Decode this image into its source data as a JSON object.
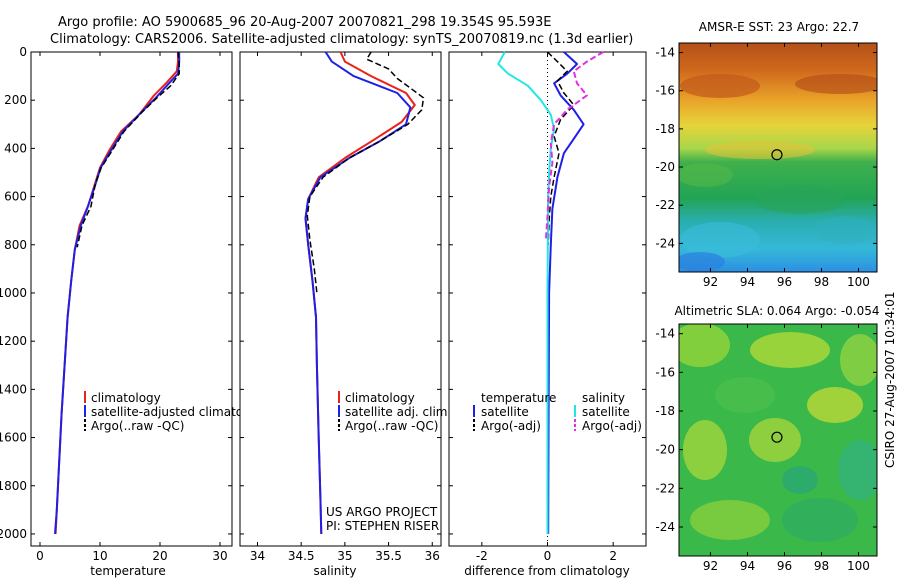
{
  "header": {
    "line1": "Argo profile: AO 5900685_96 20-Aug-2007 20070821_298 19.354S 95.593E",
    "line2": "Climatology: CARS2006. Satellite-adjusted climatology: synTS_20070819.nc (1.3d earlier)"
  },
  "side_label": "CSIRO 27-Aug-2007 10:34:01",
  "credit": {
    "line1": "US ARGO PROJECT",
    "line2": "PI: STEPHEN RISER"
  },
  "colors": {
    "climatology": "#e8231a",
    "satellite": "#1f1fe6",
    "argo": "#000000",
    "sal_satellite": "#22e6e6",
    "sal_argo": "#e030e0"
  },
  "chart_data": [
    {
      "id": "temperature",
      "type": "line",
      "xlabel": "temperature",
      "ylabel": "",
      "xlim": [
        -1.5,
        32
      ],
      "ylim": [
        2050,
        0
      ],
      "xticks": [
        0,
        10,
        20,
        30
      ],
      "yticks": [
        0,
        200,
        400,
        600,
        800,
        1000,
        1200,
        1400,
        1600,
        1800,
        2000
      ],
      "legend": [
        "climatology",
        "satellite-adjusted climatology",
        "Argo(..raw -QC)"
      ],
      "series": [
        {
          "name": "climatology",
          "color": "#e8231a",
          "width": 2,
          "points": [
            [
              23,
              0
            ],
            [
              23,
              40
            ],
            [
              22.8,
              80
            ],
            [
              21,
              130
            ],
            [
              19,
              180
            ],
            [
              16.5,
              260
            ],
            [
              13.5,
              330
            ],
            [
              11.5,
              410
            ],
            [
              10,
              480
            ],
            [
              9,
              560
            ],
            [
              8,
              640
            ],
            [
              6.6,
              720
            ],
            [
              5.8,
              820
            ],
            [
              5.2,
              950
            ],
            [
              4.6,
              1100
            ],
            [
              4.1,
              1300
            ],
            [
              3.6,
              1500
            ],
            [
              3.2,
              1700
            ],
            [
              2.8,
              1900
            ],
            [
              2.6,
              2000
            ]
          ]
        },
        {
          "name": "satellite",
          "color": "#1f1fe6",
          "width": 2,
          "points": [
            [
              23.2,
              0
            ],
            [
              23.2,
              40
            ],
            [
              23,
              90
            ],
            [
              21.5,
              130
            ],
            [
              19.3,
              190
            ],
            [
              16.5,
              260
            ],
            [
              13.8,
              330
            ],
            [
              11.8,
              410
            ],
            [
              10.1,
              480
            ],
            [
              9.1,
              560
            ],
            [
              8,
              640
            ],
            [
              6.8,
              720
            ],
            [
              5.8,
              820
            ],
            [
              5.2,
              950
            ],
            [
              4.6,
              1100
            ],
            [
              4.1,
              1300
            ],
            [
              3.6,
              1500
            ],
            [
              3.2,
              1700
            ],
            [
              2.8,
              1900
            ],
            [
              2.5,
              2000
            ]
          ]
        },
        {
          "name": "Argo",
          "color": "#000000",
          "width": 1.5,
          "dashed": true,
          "points": [
            [
              23,
              0
            ],
            [
              23.2,
              50
            ],
            [
              23.2,
              90
            ],
            [
              21.8,
              140
            ],
            [
              19.5,
              190
            ],
            [
              17,
              250
            ],
            [
              14,
              330
            ],
            [
              12,
              410
            ],
            [
              10.2,
              480
            ],
            [
              9.2,
              550
            ],
            [
              8.5,
              640
            ],
            [
              7,
              720
            ],
            [
              6.2,
              810
            ]
          ]
        }
      ]
    },
    {
      "id": "salinity",
      "type": "line",
      "xlabel": "salinity",
      "ylabel": "",
      "xlim": [
        33.8,
        36.1
      ],
      "ylim": [
        2050,
        0
      ],
      "xticks": [
        34,
        34.5,
        35,
        35.5,
        36
      ],
      "yticks": [
        0,
        200,
        400,
        600,
        800,
        1000,
        1200,
        1400,
        1600,
        1800,
        2000
      ],
      "legend": [
        "climatology",
        "satellite adj. clim.",
        "Argo(..raw -QC)"
      ],
      "series": [
        {
          "name": "climatology",
          "color": "#e8231a",
          "width": 2,
          "points": [
            [
              34.95,
              0
            ],
            [
              35,
              40
            ],
            [
              35.3,
              100
            ],
            [
              35.7,
              170
            ],
            [
              35.8,
              220
            ],
            [
              35.65,
              290
            ],
            [
              35.35,
              360
            ],
            [
              35,
              440
            ],
            [
              34.7,
              520
            ],
            [
              34.58,
              610
            ],
            [
              34.55,
              690
            ],
            [
              34.58,
              800
            ],
            [
              34.63,
              950
            ],
            [
              34.67,
              1100
            ],
            [
              34.68,
              1300
            ],
            [
              34.7,
              1600
            ],
            [
              34.72,
              1850
            ],
            [
              34.73,
              2000
            ]
          ]
        },
        {
          "name": "satellite",
          "color": "#1f1fe6",
          "width": 2,
          "points": [
            [
              34.78,
              0
            ],
            [
              34.85,
              40
            ],
            [
              35.1,
              100
            ],
            [
              35.6,
              170
            ],
            [
              35.75,
              230
            ],
            [
              35.7,
              300
            ],
            [
              35.4,
              370
            ],
            [
              35.05,
              440
            ],
            [
              34.72,
              520
            ],
            [
              34.58,
              610
            ],
            [
              34.55,
              690
            ],
            [
              34.58,
              800
            ],
            [
              34.63,
              950
            ],
            [
              34.67,
              1100
            ],
            [
              34.68,
              1300
            ],
            [
              34.7,
              1600
            ],
            [
              34.72,
              1850
            ],
            [
              34.73,
              2000
            ]
          ]
        },
        {
          "name": "Argo",
          "color": "#000000",
          "width": 1.5,
          "dashed": true,
          "points": [
            [
              35.3,
              0
            ],
            [
              35.25,
              30
            ],
            [
              35.5,
              70
            ],
            [
              35.6,
              110
            ],
            [
              35.75,
              150
            ],
            [
              35.9,
              190
            ],
            [
              35.88,
              240
            ],
            [
              35.72,
              300
            ],
            [
              35.4,
              370
            ],
            [
              35.05,
              440
            ],
            [
              34.75,
              520
            ],
            [
              34.6,
              600
            ],
            [
              34.57,
              680
            ],
            [
              34.6,
              780
            ],
            [
              34.65,
              900
            ],
            [
              34.68,
              1000
            ]
          ]
        }
      ]
    },
    {
      "id": "difference",
      "type": "line",
      "xlabel": "difference from climatology",
      "ylabel": "",
      "xlim": [
        -3,
        3
      ],
      "ylim": [
        2050,
        0
      ],
      "xticks": [
        -2,
        0,
        2
      ],
      "yticks": [
        0,
        200,
        400,
        600,
        800,
        1000,
        1200,
        1400,
        1600,
        1800,
        2000
      ],
      "legend_title_left": "temperature",
      "legend_title_right": "salinity",
      "legend_left": [
        "satellite",
        "Argo(-adj)"
      ],
      "legend_right": [
        "satellite",
        "Argo(-adj)"
      ],
      "series": [
        {
          "name": "temperature satellite",
          "color": "#1f1fe6",
          "width": 2,
          "points": [
            [
              0.5,
              0
            ],
            [
              0.9,
              50
            ],
            [
              0.6,
              90
            ],
            [
              0.2,
              130
            ],
            [
              0.4,
              180
            ],
            [
              0.8,
              240
            ],
            [
              1.1,
              300
            ],
            [
              0.8,
              360
            ],
            [
              0.5,
              420
            ],
            [
              0.3,
              520
            ],
            [
              0.15,
              650
            ],
            [
              0.1,
              800
            ],
            [
              0.05,
              1000
            ],
            [
              0.04,
              1300
            ],
            [
              0.03,
              1600
            ],
            [
              0.02,
              2000
            ]
          ]
        },
        {
          "name": "temperature Argo",
          "color": "#000000",
          "width": 1.5,
          "dashed": true,
          "points": [
            [
              0,
              0
            ],
            [
              0.3,
              40
            ],
            [
              0.6,
              80
            ],
            [
              0.3,
              120
            ],
            [
              0.5,
              170
            ],
            [
              0.8,
              220
            ],
            [
              0.4,
              280
            ],
            [
              0.2,
              350
            ],
            [
              0.35,
              420
            ],
            [
              0.2,
              520
            ],
            [
              0.1,
              600
            ],
            [
              0.05,
              700
            ],
            [
              0.02,
              800
            ]
          ]
        },
        {
          "name": "salinity satellite",
          "color": "#22e6e6",
          "width": 2,
          "points": [
            [
              -1.3,
              0
            ],
            [
              -1.5,
              50
            ],
            [
              -1.2,
              90
            ],
            [
              -0.6,
              140
            ],
            [
              -0.2,
              200
            ],
            [
              0.1,
              260
            ],
            [
              0.2,
              320
            ],
            [
              0.1,
              400
            ],
            [
              0.05,
              500
            ],
            [
              0.02,
              600
            ],
            [
              0.01,
              800
            ],
            [
              0,
              1000
            ],
            [
              0,
              2000
            ]
          ]
        },
        {
          "name": "salinity Argo",
          "color": "#e030e0",
          "width": 2,
          "dashed": true,
          "points": [
            [
              1.7,
              0
            ],
            [
              1.2,
              40
            ],
            [
              0.8,
              80
            ],
            [
              0.9,
              130
            ],
            [
              1.2,
              180
            ],
            [
              0.6,
              240
            ],
            [
              0.2,
              300
            ],
            [
              0.1,
              380
            ],
            [
              0.15,
              460
            ],
            [
              0.05,
              560
            ],
            [
              0,
              680
            ],
            [
              -0.05,
              780
            ]
          ]
        }
      ]
    },
    {
      "id": "sst_map",
      "type": "heatmap",
      "title": "AMSR-E SST: 23 Argo: 22.7",
      "xlim": [
        90.3,
        101
      ],
      "ylim": [
        -25.5,
        -13.5
      ],
      "xticks": [
        92,
        94,
        96,
        98,
        100
      ],
      "yticks": [
        -14,
        -16,
        -18,
        -20,
        -22,
        -24
      ],
      "marker": {
        "lon": 95.593,
        "lat": -19.354
      }
    },
    {
      "id": "sla_map",
      "type": "heatmap",
      "title": "Altimetric SLA: 0.064 Argo: -0.054",
      "xlim": [
        90.3,
        101
      ],
      "ylim": [
        -25.5,
        -13.5
      ],
      "xticks": [
        92,
        94,
        96,
        98,
        100
      ],
      "yticks": [
        -14,
        -16,
        -18,
        -20,
        -22,
        -24
      ],
      "marker": {
        "lon": 95.593,
        "lat": -19.354
      }
    }
  ]
}
